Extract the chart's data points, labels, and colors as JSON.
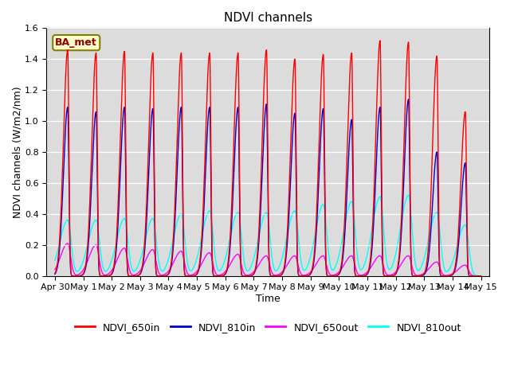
{
  "title": "NDVI channels",
  "xlabel": "Time",
  "ylabel": "NDVI channels (W/m2/nm)",
  "xlim_start": -0.3,
  "xlim_end": 15.3,
  "ylim": [
    0,
    1.6
  ],
  "yticks": [
    0.0,
    0.2,
    0.4,
    0.6,
    0.8,
    1.0,
    1.2,
    1.4,
    1.6
  ],
  "xtick_labels": [
    "Apr 30",
    "May 1",
    "May 2",
    "May 3",
    "May 4",
    "May 5",
    "May 6",
    "May 7",
    "May 8",
    "May 9",
    "May 10",
    "May 11",
    "May 12",
    "May 13",
    "May 14",
    "May 15"
  ],
  "legend_labels": [
    "NDVI_650in",
    "NDVI_810in",
    "NDVI_650out",
    "NDVI_810out"
  ],
  "line_colors": [
    "red",
    "#0000cc",
    "magenta",
    "cyan"
  ],
  "annotation_text": "BA_met",
  "bg_color": "#dcdcdc",
  "peaks_650in": [
    1.46,
    1.44,
    1.45,
    1.44,
    1.44,
    1.44,
    1.44,
    1.46,
    1.4,
    1.43,
    1.44,
    1.52,
    1.51,
    1.42,
    1.06
  ],
  "peaks_810in": [
    1.09,
    1.06,
    1.09,
    1.08,
    1.09,
    1.09,
    1.09,
    1.11,
    1.05,
    1.08,
    1.01,
    1.09,
    1.14,
    0.8,
    0.73
  ],
  "peaks_650out": [
    0.21,
    0.2,
    0.18,
    0.17,
    0.16,
    0.15,
    0.14,
    0.13,
    0.13,
    0.13,
    0.13,
    0.13,
    0.13,
    0.09,
    0.07
  ],
  "peaks_810out": [
    0.36,
    0.36,
    0.37,
    0.37,
    0.4,
    0.42,
    0.41,
    0.41,
    0.42,
    0.46,
    0.48,
    0.51,
    0.52,
    0.41,
    0.33
  ],
  "n_points": 6000
}
